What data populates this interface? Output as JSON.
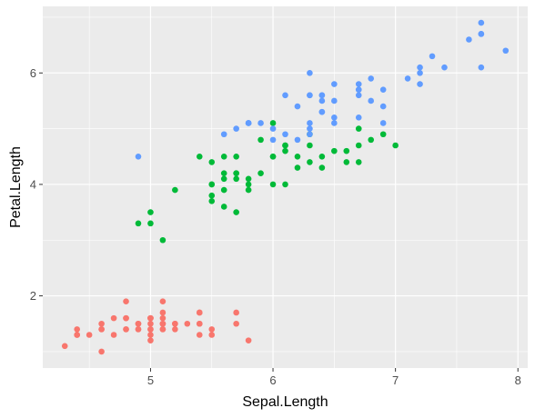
{
  "chart_data": {
    "type": "scatter",
    "xlabel": "Sepal.Length",
    "ylabel": "Petal.Length",
    "xlim": [
      4.12,
      8.08
    ],
    "ylim": [
      0.705,
      7.195
    ],
    "xticks": [
      5,
      6,
      7,
      8
    ],
    "yticks": [
      2,
      4,
      6
    ],
    "xtick_labels": [
      "5",
      "6",
      "7",
      "8"
    ],
    "ytick_labels": [
      "2",
      "4",
      "6"
    ],
    "grid": true,
    "legend": "none",
    "series": [
      {
        "color": "#F8766D",
        "points": [
          [
            5.1,
            1.4
          ],
          [
            4.9,
            1.4
          ],
          [
            4.7,
            1.3
          ],
          [
            4.6,
            1.5
          ],
          [
            5.0,
            1.4
          ],
          [
            5.4,
            1.7
          ],
          [
            4.6,
            1.4
          ],
          [
            5.0,
            1.5
          ],
          [
            4.4,
            1.4
          ],
          [
            4.9,
            1.5
          ],
          [
            5.4,
            1.5
          ],
          [
            4.8,
            1.6
          ],
          [
            4.8,
            1.4
          ],
          [
            4.3,
            1.1
          ],
          [
            5.8,
            1.2
          ],
          [
            5.7,
            1.5
          ],
          [
            5.4,
            1.3
          ],
          [
            5.1,
            1.4
          ],
          [
            5.7,
            1.7
          ],
          [
            5.1,
            1.5
          ],
          [
            5.4,
            1.7
          ],
          [
            5.1,
            1.5
          ],
          [
            4.6,
            1.0
          ],
          [
            5.1,
            1.7
          ],
          [
            4.8,
            1.9
          ],
          [
            5.0,
            1.6
          ],
          [
            5.0,
            1.6
          ],
          [
            5.2,
            1.5
          ],
          [
            5.2,
            1.4
          ],
          [
            4.7,
            1.6
          ],
          [
            4.8,
            1.6
          ],
          [
            5.4,
            1.5
          ],
          [
            5.2,
            1.5
          ],
          [
            5.5,
            1.4
          ],
          [
            4.9,
            1.5
          ],
          [
            5.0,
            1.2
          ],
          [
            5.5,
            1.3
          ],
          [
            4.9,
            1.4
          ],
          [
            4.4,
            1.3
          ],
          [
            5.1,
            1.5
          ],
          [
            5.0,
            1.3
          ],
          [
            4.5,
            1.3
          ],
          [
            4.4,
            1.3
          ],
          [
            5.0,
            1.6
          ],
          [
            5.1,
            1.9
          ],
          [
            4.8,
            1.4
          ],
          [
            5.1,
            1.6
          ],
          [
            4.6,
            1.4
          ],
          [
            5.3,
            1.5
          ],
          [
            5.0,
            1.4
          ]
        ]
      },
      {
        "color": "#00BA38",
        "points": [
          [
            7.0,
            4.7
          ],
          [
            6.4,
            4.5
          ],
          [
            6.9,
            4.9
          ],
          [
            5.5,
            4.0
          ],
          [
            6.5,
            4.6
          ],
          [
            5.7,
            4.5
          ],
          [
            6.3,
            4.7
          ],
          [
            4.9,
            3.3
          ],
          [
            6.6,
            4.6
          ],
          [
            5.2,
            3.9
          ],
          [
            5.0,
            3.5
          ],
          [
            5.9,
            4.2
          ],
          [
            6.0,
            4.0
          ],
          [
            6.1,
            4.7
          ],
          [
            5.6,
            3.6
          ],
          [
            6.7,
            4.4
          ],
          [
            5.6,
            4.5
          ],
          [
            5.8,
            4.1
          ],
          [
            6.2,
            4.5
          ],
          [
            5.6,
            3.9
          ],
          [
            5.9,
            4.8
          ],
          [
            6.1,
            4.0
          ],
          [
            6.3,
            4.9
          ],
          [
            6.1,
            4.7
          ],
          [
            6.4,
            4.3
          ],
          [
            6.6,
            4.4
          ],
          [
            6.8,
            4.8
          ],
          [
            6.7,
            5.0
          ],
          [
            6.0,
            4.5
          ],
          [
            5.7,
            3.5
          ],
          [
            5.5,
            3.8
          ],
          [
            5.5,
            3.7
          ],
          [
            5.8,
            3.9
          ],
          [
            6.0,
            5.1
          ],
          [
            5.4,
            4.5
          ],
          [
            6.0,
            4.5
          ],
          [
            6.7,
            4.7
          ],
          [
            6.3,
            4.4
          ],
          [
            5.6,
            4.1
          ],
          [
            5.5,
            4.0
          ],
          [
            5.5,
            4.4
          ],
          [
            6.1,
            4.6
          ],
          [
            5.8,
            4.0
          ],
          [
            5.0,
            3.3
          ],
          [
            5.6,
            4.2
          ],
          [
            5.7,
            4.2
          ],
          [
            5.7,
            4.2
          ],
          [
            6.2,
            4.3
          ],
          [
            5.1,
            3.0
          ],
          [
            5.7,
            4.1
          ]
        ]
      },
      {
        "color": "#619CFF",
        "points": [
          [
            6.3,
            6.0
          ],
          [
            5.8,
            5.1
          ],
          [
            7.1,
            5.9
          ],
          [
            6.3,
            5.6
          ],
          [
            6.5,
            5.8
          ],
          [
            7.6,
            6.6
          ],
          [
            4.9,
            4.5
          ],
          [
            7.3,
            6.3
          ],
          [
            6.7,
            5.8
          ],
          [
            7.2,
            6.1
          ],
          [
            6.5,
            5.1
          ],
          [
            6.4,
            5.3
          ],
          [
            6.8,
            5.5
          ],
          [
            5.7,
            5.0
          ],
          [
            5.8,
            5.1
          ],
          [
            6.4,
            5.3
          ],
          [
            6.5,
            5.5
          ],
          [
            7.7,
            6.7
          ],
          [
            7.7,
            6.9
          ],
          [
            6.0,
            5.0
          ],
          [
            6.9,
            5.7
          ],
          [
            5.6,
            4.9
          ],
          [
            7.7,
            6.7
          ],
          [
            6.3,
            4.9
          ],
          [
            6.7,
            5.7
          ],
          [
            7.2,
            6.0
          ],
          [
            6.2,
            4.8
          ],
          [
            6.1,
            4.9
          ],
          [
            6.4,
            5.6
          ],
          [
            7.2,
            5.8
          ],
          [
            7.4,
            6.1
          ],
          [
            7.9,
            6.4
          ],
          [
            6.4,
            5.6
          ],
          [
            6.3,
            5.1
          ],
          [
            6.1,
            5.6
          ],
          [
            7.7,
            6.1
          ],
          [
            6.3,
            5.6
          ],
          [
            6.4,
            5.5
          ],
          [
            6.0,
            4.8
          ],
          [
            6.9,
            5.4
          ],
          [
            6.7,
            5.6
          ],
          [
            6.9,
            5.1
          ],
          [
            5.8,
            5.1
          ],
          [
            6.8,
            5.9
          ],
          [
            6.7,
            5.7
          ],
          [
            6.7,
            5.2
          ],
          [
            6.3,
            5.0
          ],
          [
            6.5,
            5.2
          ],
          [
            6.2,
            5.4
          ],
          [
            5.9,
            5.1
          ]
        ]
      }
    ]
  }
}
